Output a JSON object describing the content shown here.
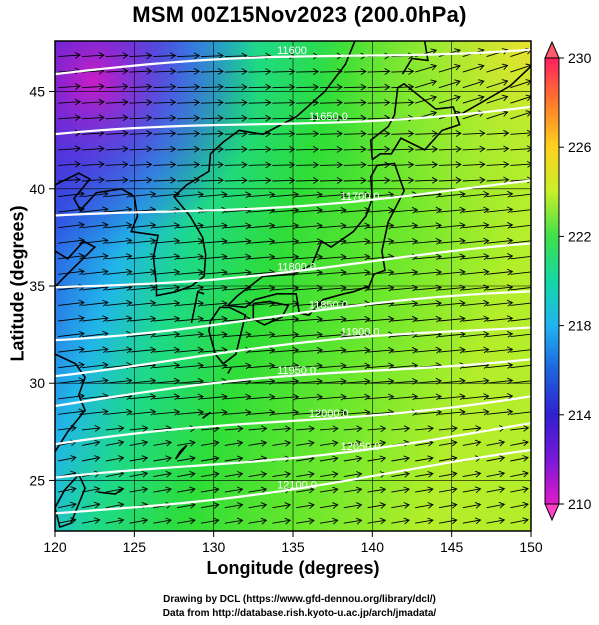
{
  "title": "MSM 00Z15Nov2023 (200.0hPa)",
  "x_axis": {
    "label": "Longitude (degrees)",
    "ticks": [
      120,
      125,
      130,
      135,
      140,
      145,
      150
    ]
  },
  "y_axis": {
    "label": "Latitude  (degrees)",
    "ticks": [
      25,
      30,
      35,
      40,
      45
    ]
  },
  "extent": {
    "lon_min": 120,
    "lon_max": 150,
    "lat_min": 22.4,
    "lat_max": 47.6
  },
  "colorbar": {
    "min": 210,
    "max": 230,
    "ticks": [
      "230",
      "226",
      "222",
      "218",
      "214",
      "210"
    ],
    "colors": [
      "#ff2060",
      "#ff7a2a",
      "#ffd21f",
      "#c8f028",
      "#3ee04a",
      "#14d7a6",
      "#20b4f0",
      "#1e64e0",
      "#3020d0",
      "#7a18d8",
      "#e21ac8"
    ]
  },
  "contours": [
    {
      "label": "11600",
      "lat": 46.5
    },
    {
      "label": "11650.0",
      "lat": 43.2
    },
    {
      "label": "11700.0",
      "lat": 39.0
    },
    {
      "label": "11800.0",
      "lat": 35.5
    },
    {
      "label": "11850.0",
      "lat": 33.0
    },
    {
      "label": "11900.0",
      "lat": 31.2
    },
    {
      "label": "11950.0",
      "lat": 29.5
    },
    {
      "label": "12000.0",
      "lat": 27.3
    },
    {
      "label": "12050.0",
      "lat": 25.5
    },
    {
      "label": "12100.0",
      "lat": 23.8
    }
  ],
  "credits": [
    "Drawing by DCL (https://www.gfd-dennou.org/library/dcl/)",
    "Data from http://database.rish.kyoto-u.ac.jp/arch/jmadata/"
  ]
}
